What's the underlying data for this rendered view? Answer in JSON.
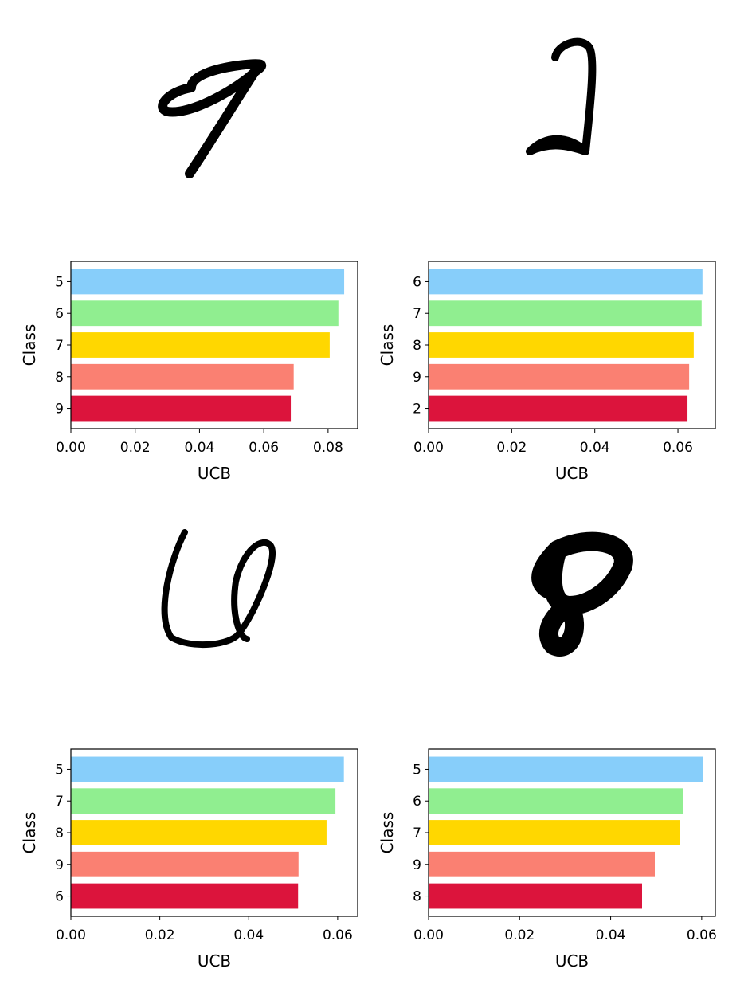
{
  "chart_data": [
    {
      "type": "bar",
      "orientation": "horizontal",
      "categories": [
        "5",
        "6",
        "7",
        "8",
        "9"
      ],
      "values": [
        0.085,
        0.0832,
        0.0805,
        0.0693,
        0.0684
      ],
      "colors": [
        "#87cefa",
        "#90ee90",
        "#ffd700",
        "#fa8072",
        "#dc143c"
      ],
      "xlim": [
        0,
        0.0892
      ],
      "xticks": [
        {
          "value": 0,
          "label": "0.00"
        },
        {
          "value": 0.02,
          "label": "0.02"
        },
        {
          "value": 0.04,
          "label": "0.04"
        },
        {
          "value": 0.06,
          "label": "0.06"
        },
        {
          "value": 0.08,
          "label": "0.08"
        }
      ],
      "xlabel": "UCB",
      "ylabel": "Class"
    },
    {
      "type": "bar",
      "orientation": "horizontal",
      "categories": [
        "6",
        "7",
        "8",
        "9",
        "2"
      ],
      "values": [
        0.0659,
        0.0657,
        0.0638,
        0.0627,
        0.0623
      ],
      "colors": [
        "#87cefa",
        "#90ee90",
        "#ffd700",
        "#fa8072",
        "#dc143c"
      ],
      "xlim": [
        0,
        0.069
      ],
      "xticks": [
        {
          "value": 0,
          "label": "0.00"
        },
        {
          "value": 0.02,
          "label": "0.02"
        },
        {
          "value": 0.04,
          "label": "0.04"
        },
        {
          "value": 0.06,
          "label": "0.06"
        }
      ],
      "xlabel": "UCB",
      "ylabel": "Class"
    },
    {
      "type": "bar",
      "orientation": "horizontal",
      "categories": [
        "5",
        "7",
        "8",
        "9",
        "6"
      ],
      "values": [
        0.0614,
        0.0595,
        0.0575,
        0.0512,
        0.0511
      ],
      "colors": [
        "#87cefa",
        "#90ee90",
        "#ffd700",
        "#fa8072",
        "#dc143c"
      ],
      "xlim": [
        0,
        0.0645
      ],
      "xticks": [
        {
          "value": 0,
          "label": "0.00"
        },
        {
          "value": 0.02,
          "label": "0.02"
        },
        {
          "value": 0.04,
          "label": "0.04"
        },
        {
          "value": 0.06,
          "label": "0.06"
        }
      ],
      "xlabel": "UCB",
      "ylabel": "Class"
    },
    {
      "type": "bar",
      "orientation": "horizontal",
      "categories": [
        "5",
        "6",
        "7",
        "9",
        "8"
      ],
      "values": [
        0.0602,
        0.056,
        0.0553,
        0.0497,
        0.0469
      ],
      "colors": [
        "#87cefa",
        "#90ee90",
        "#ffd700",
        "#fa8072",
        "#dc143c"
      ],
      "xlim": [
        0,
        0.063
      ],
      "xticks": [
        {
          "value": 0,
          "label": "0.00"
        },
        {
          "value": 0.02,
          "label": "0.02"
        },
        {
          "value": 0.04,
          "label": "0.04"
        },
        {
          "value": 0.06,
          "label": "0.06"
        }
      ],
      "xlabel": "UCB",
      "ylabel": "Class"
    }
  ]
}
